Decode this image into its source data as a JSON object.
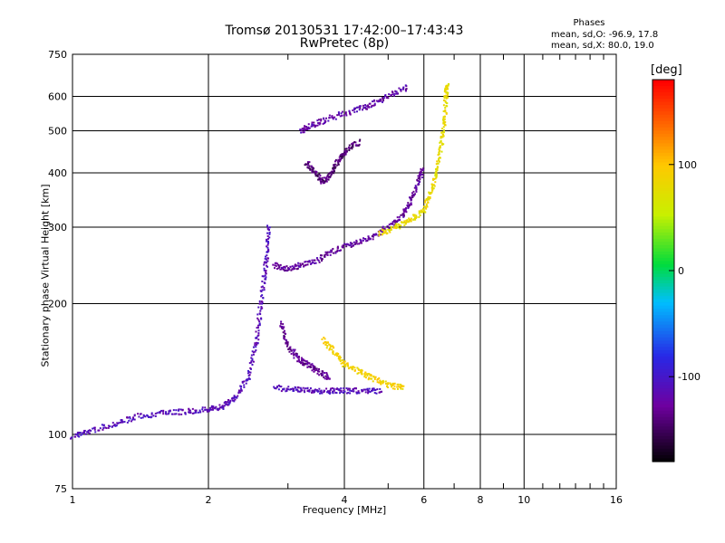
{
  "title_line1": "Tromsø 20130531 17:42:00–17:43:43",
  "title_line2": "RwPretec (8p)",
  "phases": {
    "header": "Phases",
    "line_o": "mean, sd,O: -96.9, 17.8",
    "line_x": "mean, sd,X:  80.0, 19.0"
  },
  "colorbar": {
    "unit": "[deg]",
    "ticks": [
      "100",
      "0",
      "-100"
    ],
    "tick_values": [
      100,
      0,
      -100
    ]
  },
  "chart_data": {
    "type": "scatter",
    "xlabel": "Frequency [MHz]",
    "ylabel": "Stationary phase Virtual Height [km]",
    "xscale": "log",
    "yscale": "log",
    "xlim": [
      1,
      16
    ],
    "ylim": [
      75,
      750
    ],
    "x_major_ticks": [
      1,
      2,
      4,
      6,
      8,
      10,
      16
    ],
    "x_tick_labels": [
      "1",
      "2",
      "4",
      "6",
      "8",
      "10",
      "16"
    ],
    "x_minor_ticks": [
      3,
      5,
      7,
      9,
      11,
      12,
      13,
      14,
      15
    ],
    "y_major_ticks": [
      75,
      100,
      200,
      300,
      400,
      500,
      600,
      750
    ],
    "y_tick_labels": [
      "75",
      "100",
      "200",
      "300",
      "400",
      "500",
      "600",
      "750"
    ],
    "grid": true,
    "color_by": "phase",
    "phase_range": [
      -180,
      180
    ],
    "traces": [
      {
        "desc": "E/F1 lower trace",
        "phase": -110,
        "points": [
          [
            1.0,
            99
          ],
          [
            1.1,
            102
          ],
          [
            1.25,
            106
          ],
          [
            1.4,
            110
          ],
          [
            1.6,
            112
          ],
          [
            1.8,
            113
          ],
          [
            2.0,
            114
          ],
          [
            2.15,
            116
          ],
          [
            2.3,
            122
          ],
          [
            2.45,
            135
          ],
          [
            2.55,
            160
          ],
          [
            2.6,
            190
          ],
          [
            2.65,
            225
          ],
          [
            2.7,
            260
          ],
          [
            2.72,
            300
          ]
        ]
      },
      {
        "desc": "O-mode F layer",
        "phase": -125,
        "points": [
          [
            2.8,
            245
          ],
          [
            3.0,
            240
          ],
          [
            3.2,
            245
          ],
          [
            3.5,
            252
          ],
          [
            3.8,
            265
          ],
          [
            4.2,
            275
          ],
          [
            4.6,
            285
          ],
          [
            5.0,
            300
          ],
          [
            5.4,
            320
          ],
          [
            5.6,
            345
          ],
          [
            5.8,
            375
          ],
          [
            5.95,
            405
          ]
        ]
      },
      {
        "desc": "X-mode F layer",
        "phase": 80,
        "points": [
          [
            4.8,
            290
          ],
          [
            5.2,
            300
          ],
          [
            5.6,
            310
          ],
          [
            6.0,
            328
          ],
          [
            6.2,
            360
          ],
          [
            6.4,
            400
          ],
          [
            6.55,
            460
          ],
          [
            6.65,
            520
          ],
          [
            6.72,
            600
          ],
          [
            6.75,
            640
          ]
        ]
      },
      {
        "desc": "O-mode multi-hop cluster",
        "phase": -140,
        "points": [
          [
            3.3,
            420
          ],
          [
            3.45,
            400
          ],
          [
            3.6,
            380
          ],
          [
            3.75,
            400
          ],
          [
            3.9,
            430
          ],
          [
            4.05,
            450
          ],
          [
            4.3,
            470
          ]
        ]
      },
      {
        "desc": "O-mode upper trace",
        "phase": -120,
        "points": [
          [
            3.2,
            500
          ],
          [
            3.4,
            515
          ],
          [
            3.7,
            535
          ],
          [
            4.2,
            555
          ],
          [
            4.6,
            575
          ],
          [
            5.0,
            600
          ],
          [
            5.5,
            630
          ]
        ]
      },
      {
        "desc": "Spread lower O",
        "phase": -130,
        "points": [
          [
            2.9,
            180
          ],
          [
            3.0,
            160
          ],
          [
            3.15,
            150
          ],
          [
            3.3,
            145
          ],
          [
            3.5,
            140
          ],
          [
            3.7,
            135
          ]
        ]
      },
      {
        "desc": "Spread lower X",
        "phase": 90,
        "points": [
          [
            3.6,
            165
          ],
          [
            3.8,
            155
          ],
          [
            4.0,
            145
          ],
          [
            4.3,
            140
          ],
          [
            4.6,
            135
          ],
          [
            5.0,
            130
          ],
          [
            5.4,
            128
          ]
        ]
      },
      {
        "desc": "Low horizontal O",
        "phase": -110,
        "points": [
          [
            2.8,
            128
          ],
          [
            3.1,
            127
          ],
          [
            3.4,
            126
          ],
          [
            3.7,
            126
          ],
          [
            4.0,
            126
          ],
          [
            4.4,
            126
          ],
          [
            4.8,
            126
          ]
        ]
      }
    ]
  }
}
